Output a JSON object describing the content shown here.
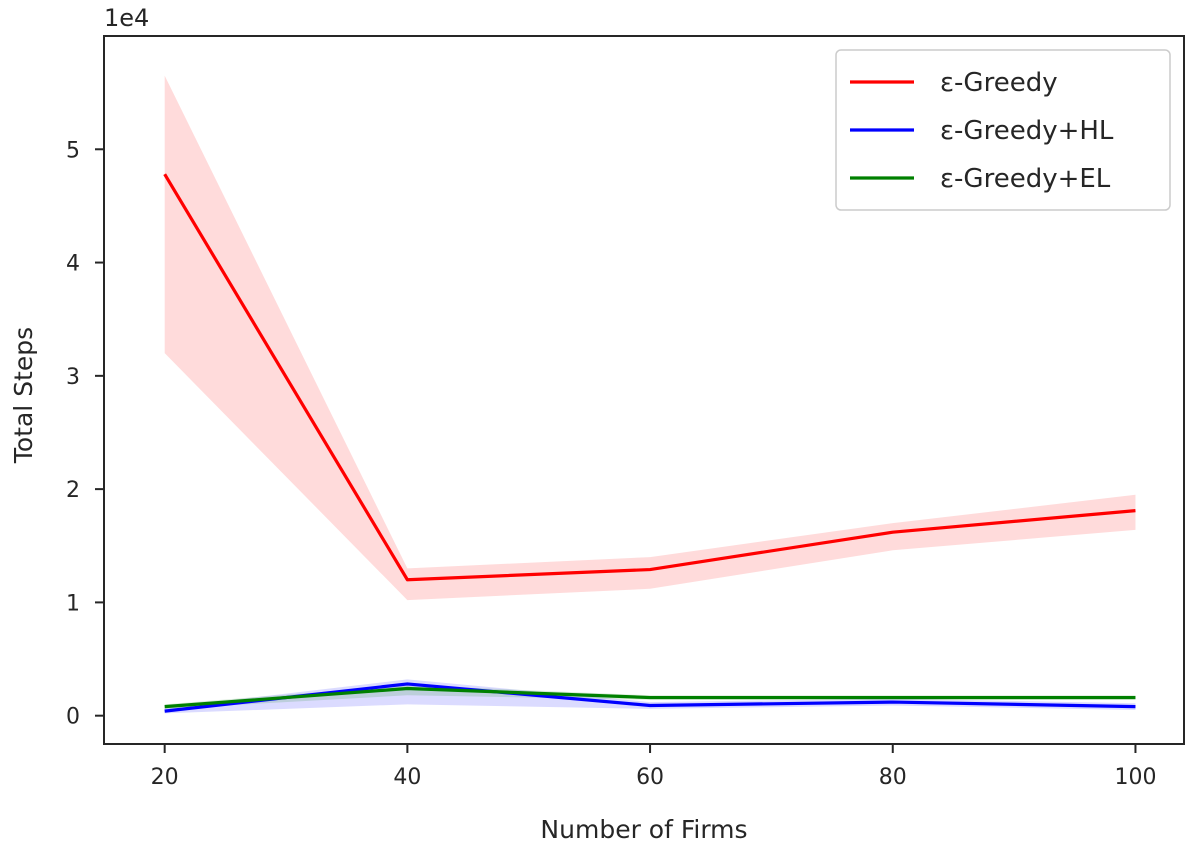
{
  "chart_data": {
    "type": "line",
    "xlabel": "Number of Firms",
    "ylabel": "Total Steps",
    "y_offset_label": "1e4",
    "x": [
      20,
      40,
      60,
      80,
      100
    ],
    "xticks": [
      "20",
      "40",
      "60",
      "80",
      "100"
    ],
    "yticks": [
      "0",
      "1",
      "2",
      "3",
      "4",
      "5"
    ],
    "xlim": [
      15,
      104
    ],
    "ylim": [
      -0.25,
      6.0
    ],
    "units_multiplier": 10000,
    "grid": false,
    "legend_position": "top-right",
    "series": [
      {
        "name": "ε-Greedy",
        "color": "#ff0000",
        "values": [
          4.78,
          1.2,
          1.29,
          1.62,
          1.81
        ],
        "band_low": [
          3.2,
          1.02,
          1.12,
          1.46,
          1.64
        ],
        "band_high": [
          5.65,
          1.3,
          1.4,
          1.7,
          1.95
        ]
      },
      {
        "name": "ε-Greedy+HL",
        "color": "#0000ff",
        "values": [
          0.04,
          0.28,
          0.09,
          0.12,
          0.08
        ],
        "band_low": [
          0.02,
          0.1,
          0.06,
          0.09,
          0.05
        ],
        "band_high": [
          0.07,
          0.32,
          0.12,
          0.15,
          0.11
        ]
      },
      {
        "name": "ε-Greedy+EL",
        "color": "#008000",
        "values": [
          0.08,
          0.24,
          0.16,
          0.16,
          0.16
        ],
        "band_low": [
          0.06,
          0.18,
          0.14,
          0.14,
          0.14
        ],
        "band_high": [
          0.1,
          0.27,
          0.18,
          0.18,
          0.18
        ]
      }
    ]
  }
}
